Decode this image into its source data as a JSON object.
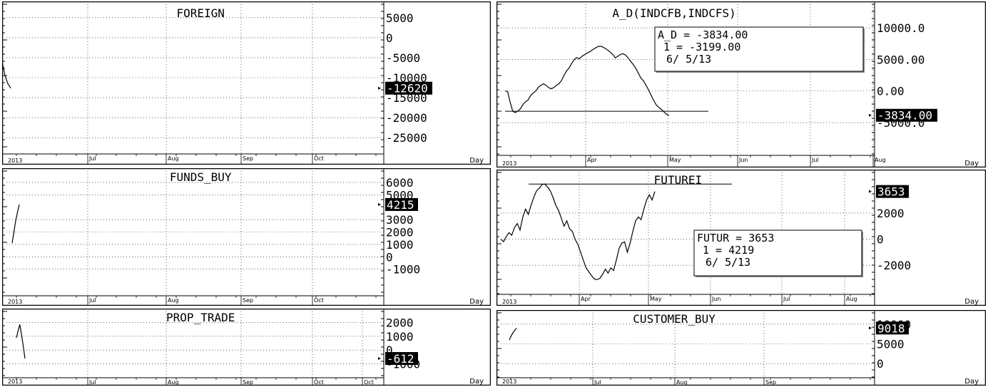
{
  "day_label": "Day",
  "chart_data": [
    {
      "type": "line",
      "title": "FOREIGN",
      "year_label": "2013",
      "x_ticks": [
        "Jul",
        "Aug",
        "Sep",
        "Oct"
      ],
      "y_ticks": [
        "5000",
        "0",
        "-5000",
        "-10000",
        "-15000",
        "-20000",
        "-25000"
      ],
      "y_tick_values": [
        5000,
        0,
        -5000,
        -10000,
        -15000,
        -20000,
        -25000
      ],
      "current_value": "-12620",
      "ylim": [
        -28000,
        8000
      ],
      "series": [
        {
          "values": [
            -6000,
            -9500,
            -11500,
            -12620
          ]
        }
      ],
      "horizontal_line": null,
      "legend": null
    },
    {
      "type": "line",
      "title": "A_D(INDCFB,INDCFS)",
      "year_label": "2013",
      "x_ticks": [
        "Apr",
        "May",
        "Jun",
        "Jul",
        "Aug"
      ],
      "y_ticks": [
        "10000.0",
        "5000.00",
        "0.00",
        "-5000.0"
      ],
      "y_tick_values": [
        10000,
        5000,
        0,
        -5000
      ],
      "current_value": "-3834.00",
      "ylim": [
        -9500,
        13500
      ],
      "series": [
        {
          "values": [
            0,
            -50,
            -1800,
            -3200,
            -3400,
            -3150,
            -2800,
            -2100,
            -1700,
            -1400,
            -700,
            -300,
            0,
            600,
            900,
            1150,
            900,
            550,
            350,
            550,
            900,
            1150,
            1650,
            2500,
            3200,
            3650,
            4400,
            4950,
            5300,
            5100,
            5500,
            5750,
            6000,
            6200,
            6500,
            6750,
            7000,
            7100,
            7000,
            6750,
            6500,
            6150,
            5800,
            5250,
            5500,
            5800,
            5900,
            5700,
            5250,
            4700,
            4200,
            3600,
            2800,
            2050,
            1600,
            900,
            150,
            -700,
            -1500,
            -2200,
            -2600,
            -2900,
            -3300,
            -3700,
            -3834
          ]
        }
      ],
      "horizontal_line": -3199,
      "legend": {
        "line1": "A_D    = -3834.00",
        "line2": "1 = -3199.00",
        "line3": "6/ 5/13"
      }
    },
    {
      "type": "line",
      "title": "FUNDS_BUY",
      "year_label": "2013",
      "x_ticks": [
        "Jul",
        "Aug",
        "Sep",
        "Oct"
      ],
      "y_ticks": [
        "6000",
        "5000",
        "3000",
        "2000",
        "1000",
        "0",
        "-1000"
      ],
      "y_tick_values": [
        6000,
        5000,
        3000,
        2000,
        1000,
        0,
        -1000
      ],
      "current_value": "4215",
      "ylim": [
        -2800,
        6800
      ],
      "series": [
        {
          "values": [
            1100,
            2000,
            2900,
            3600,
            4215
          ]
        }
      ],
      "horizontal_line": null,
      "legend": null
    },
    {
      "type": "line",
      "title": "FUTUREI",
      "year_label": "2013",
      "x_ticks": [
        "Apr",
        "May",
        "Jun",
        "Jul",
        "Aug"
      ],
      "y_ticks": [
        "2000",
        "0",
        "-2000"
      ],
      "y_tick_values": [
        2000,
        0,
        -2000
      ],
      "current_value": "3653",
      "ylim": [
        -3900,
        5000
      ],
      "series": [
        {
          "values": [
            0,
            -200,
            200,
            500,
            300,
            900,
            1200,
            700,
            1700,
            2300,
            1900,
            2600,
            3200,
            3700,
            3900,
            4200,
            4219,
            4000,
            3700,
            3200,
            2600,
            2200,
            1600,
            1000,
            1400,
            800,
            600,
            0,
            -400,
            -1000,
            -1600,
            -2200,
            -2500,
            -2800,
            -3050,
            -3100,
            -3000,
            -2700,
            -2300,
            -2600,
            -2200,
            -2400,
            -1600,
            -700,
            -300,
            -200,
            -1000,
            -300,
            600,
            1400,
            1700,
            1500,
            2300,
            3000,
            3400,
            3000,
            3653
          ]
        }
      ],
      "horizontal_line": 4219,
      "legend": {
        "line1": "FUTUR = 3653",
        "line2": "1 = 4219",
        "line3": "6/ 5/13"
      }
    },
    {
      "type": "line",
      "title": "PROP_TRADE",
      "year_label": "2013",
      "x_ticks": [
        "Jul",
        "Aug",
        "Sep",
        "Oct",
        "Oct"
      ],
      "y_ticks": [
        "2000",
        "1000",
        "0",
        "-1000"
      ],
      "y_tick_values": [
        2000,
        1000,
        0,
        -1000
      ],
      "current_value": "-612",
      "ylim": [
        -1700,
        2700
      ],
      "series": [
        {
          "values": [
            900,
            1400,
            1850,
            1100,
            300,
            -612
          ]
        }
      ],
      "horizontal_line": null,
      "legend": null
    },
    {
      "type": "line",
      "title": "CUSTOMER_BUY",
      "year_label": "2013",
      "x_ticks": [
        "Jul",
        "Aug",
        "Sep"
      ],
      "y_ticks": [
        "10000",
        "5000",
        "0"
      ],
      "y_tick_values": [
        10000,
        5000,
        0
      ],
      "current_value": "9018",
      "ylim": [
        -2500,
        12500
      ],
      "series": [
        {
          "values": [
            6000,
            7000,
            7800,
            8400,
            9018
          ]
        }
      ],
      "horizontal_line": null,
      "legend": null
    }
  ]
}
